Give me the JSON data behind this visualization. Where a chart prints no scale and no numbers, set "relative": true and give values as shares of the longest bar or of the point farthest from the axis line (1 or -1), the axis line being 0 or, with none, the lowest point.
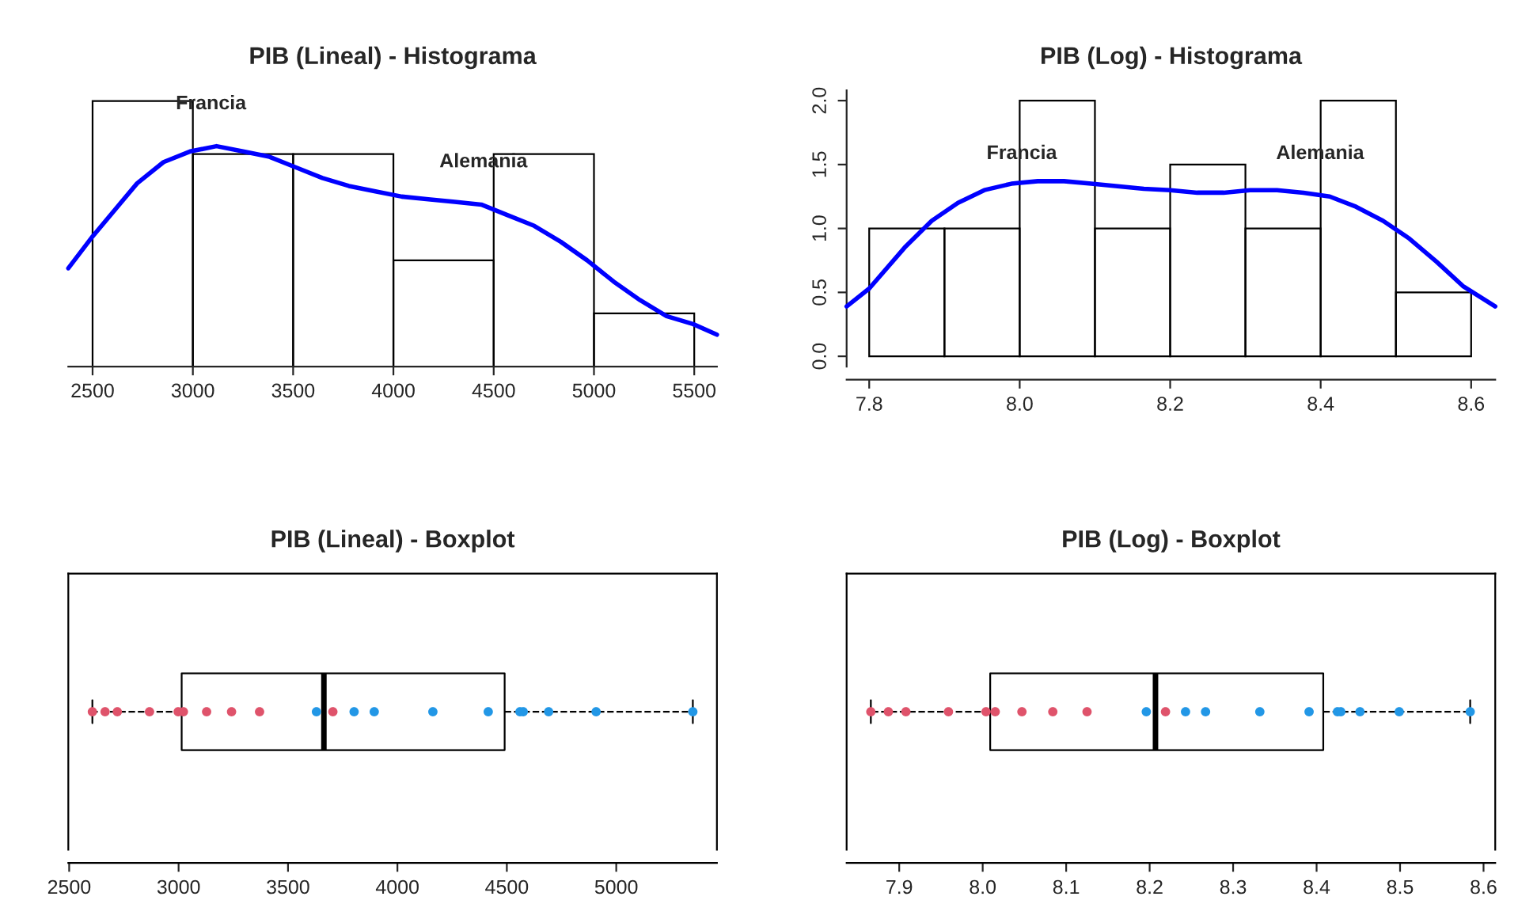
{
  "chart_data": [
    {
      "type": "histogram",
      "title": "PIB (Lineal) - Histograma",
      "relative": true,
      "bins": [
        2500,
        3000,
        3500,
        4000,
        4500,
        5000,
        5500
      ],
      "values": [
        1,
        0.8,
        0.8,
        0.4,
        0.8,
        0.2
      ],
      "series": [
        {
          "type": "line",
          "color": "#0000ff",
          "x": [
            2379,
            2500,
            2722,
            2854,
            2986,
            3118,
            3250,
            3382,
            3514,
            3646,
            3778,
            3910,
            4042,
            4174,
            4306,
            4438,
            4570,
            4702,
            4834,
            4966,
            5098,
            5230,
            5362,
            5494,
            5613
          ],
          "values": [
            0.37,
            0.49,
            0.69,
            0.77,
            0.81,
            0.83,
            0.81,
            0.79,
            0.75,
            0.71,
            0.68,
            0.66,
            0.64,
            0.63,
            0.62,
            0.61,
            0.57,
            0.53,
            0.47,
            0.4,
            0.32,
            0.25,
            0.19,
            0.16,
            0.12
          ]
        }
      ],
      "xlim": [
        2379,
        5613
      ],
      "xticks": [
        2500,
        3000,
        3500,
        4000,
        4500,
        5000,
        5500
      ],
      "tick_labels": "x",
      "annotations": [
        "Francia",
        "Alemania"
      ]
    },
    {
      "type": "histogram",
      "title": "PIB (Log) - Histograma",
      "bins": [
        7.8,
        7.9,
        8.0,
        8.1,
        8.2,
        8.3,
        8.4,
        8.5,
        8.6
      ],
      "values": [
        1,
        1,
        2,
        1,
        1.5,
        1,
        2,
        0.5
      ],
      "series": [
        {
          "type": "line",
          "color": "#0000ff",
          "x": [
            7.77,
            7.8,
            7.847,
            7.883,
            7.918,
            7.953,
            7.989,
            8.024,
            8.059,
            8.095,
            8.13,
            8.165,
            8.2,
            8.236,
            8.271,
            8.306,
            8.342,
            8.377,
            8.412,
            8.447,
            8.483,
            8.518,
            8.554,
            8.589,
            8.632
          ],
          "values": [
            0.39,
            0.53,
            0.85,
            1.06,
            1.2,
            1.3,
            1.35,
            1.37,
            1.37,
            1.35,
            1.33,
            1.31,
            1.3,
            1.28,
            1.28,
            1.3,
            1.3,
            1.28,
            1.25,
            1.17,
            1.06,
            0.92,
            0.74,
            0.55,
            0.39
          ]
        }
      ],
      "xlim": [
        7.77,
        8.632
      ],
      "xticks": [
        {
          "value": 7.8,
          "label": "7.8"
        },
        {
          "value": 8.0,
          "label": "8.0"
        },
        {
          "value": 8.2,
          "label": "8.2"
        },
        {
          "value": 8.4,
          "label": "8.4"
        },
        {
          "value": 8.6,
          "label": "8.6"
        }
      ],
      "ylim": [
        -0.08,
        2.08
      ],
      "yticks": [
        {
          "value": 0,
          "label": "0.0"
        },
        {
          "value": 0.5,
          "label": "0.5"
        },
        {
          "value": 1,
          "label": "1.0"
        },
        {
          "value": 1.5,
          "label": "1.5"
        },
        {
          "value": 2,
          "label": "2.0"
        }
      ],
      "annotations": [
        "Francia",
        "Alemania"
      ]
    },
    {
      "type": "box",
      "title": "PIB (Lineal) - Boxplot",
      "orientation": "horizontal",
      "categories": [
        null
      ],
      "line_style": "dashed",
      "marker": "circle",
      "boxes": [
        {
          "low": 2606,
          "q1": 3014,
          "median": 3664,
          "q3": 4490,
          "high": 5350
        }
      ],
      "series": [
        {
          "type": "scatter",
          "color": "#df536b",
          "x": [
            null,
            null,
            null,
            null,
            null,
            null,
            null,
            null,
            null,
            null
          ],
          "values": [
            2606,
            2664,
            2720,
            2867,
            2998,
            3022,
            3128,
            3242,
            3370,
            3705
          ]
        },
        {
          "type": "scatter",
          "color": "#2297e6",
          "x": [
            null,
            null,
            null,
            null,
            null,
            null,
            null,
            null,
            null,
            null
          ],
          "values": [
            3630,
            3802,
            3894,
            4162,
            4415,
            4560,
            4575,
            4691,
            4908,
            5350
          ]
        }
      ],
      "xlim": [
        2496,
        5460
      ],
      "xticks": [
        2500,
        3000,
        3500,
        4000,
        4500,
        5000
      ],
      "tick_labels": "x"
    },
    {
      "type": "box",
      "title": "PIB (Log) - Boxplot",
      "orientation": "horizontal",
      "categories": [
        null
      ],
      "line_style": "dashed",
      "marker": "circle",
      "boxes": [
        {
          "low": 7.866,
          "q1": 8.009,
          "median": 8.207,
          "q3": 8.408,
          "high": 8.584
        }
      ],
      "series": [
        {
          "type": "scatter",
          "color": "#df536b",
          "x": [
            null,
            null,
            null,
            null,
            null,
            null,
            null,
            null,
            null,
            null
          ],
          "values": [
            7.866,
            7.887,
            7.908,
            7.959,
            8.004,
            8.015,
            8.047,
            8.084,
            8.125,
            8.219
          ]
        },
        {
          "type": "scatter",
          "color": "#2297e6",
          "x": [
            null,
            null,
            null,
            null,
            null,
            null,
            null,
            null,
            null,
            null
          ],
          "values": [
            8.196,
            8.243,
            8.267,
            8.332,
            8.391,
            8.425,
            8.429,
            8.452,
            8.499,
            8.584
          ]
        }
      ],
      "xlim": [
        7.837,
        8.614
      ],
      "xticks": [
        {
          "value": 7.9,
          "label": "7.9"
        },
        {
          "value": 8.0,
          "label": "8.0"
        },
        {
          "value": 8.1,
          "label": "8.1"
        },
        {
          "value": 8.2,
          "label": "8.2"
        },
        {
          "value": 8.3,
          "label": "8.3"
        },
        {
          "value": 8.4,
          "label": "8.4"
        },
        {
          "value": 8.5,
          "label": "8.5"
        },
        {
          "value": 8.6,
          "label": "8.6"
        }
      ],
      "tick_labels": "x"
    }
  ]
}
